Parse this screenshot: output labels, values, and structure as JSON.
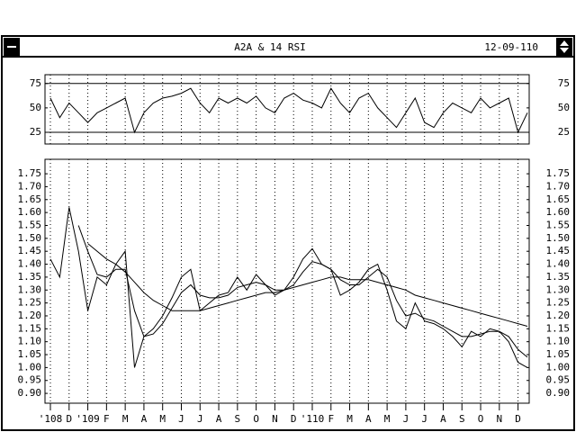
{
  "window": {
    "title": "A2A & 14 RSI",
    "date": "12-09-110"
  },
  "chart_data": [
    {
      "type": "line",
      "ylim": [
        13,
        84
      ],
      "yticks": [
        25,
        50,
        75
      ],
      "ref_lines": [
        25,
        75
      ],
      "series": [
        {
          "color": "#000000",
          "values": [
            60,
            40,
            55,
            45,
            35,
            45,
            50,
            55,
            60,
            25,
            45,
            55,
            60,
            62,
            65,
            70,
            55,
            45,
            60,
            55,
            60,
            55,
            62,
            50,
            45,
            60,
            65,
            58,
            55,
            50,
            70,
            55,
            45,
            60,
            65,
            50,
            40,
            30,
            45,
            60,
            35,
            30,
            45,
            55,
            50,
            45,
            60,
            50,
            55,
            60,
            25,
            45
          ]
        }
      ]
    },
    {
      "type": "line",
      "ylim": [
        0.862,
        1.806
      ],
      "yticks": [
        1.75,
        {
          "value": 1.7,
          "label": "1.70"
        },
        1.65,
        {
          "value": 1.6,
          "label": "1.60"
        },
        1.55,
        {
          "value": 1.5,
          "label": "1.50"
        },
        1.45,
        {
          "value": 1.4,
          "label": "1.40"
        },
        1.35,
        {
          "value": 1.3,
          "label": "1.30"
        },
        1.25,
        {
          "value": 1.2,
          "label": "1.20"
        },
        1.15,
        {
          "value": 1.1,
          "label": "1.10"
        },
        1.05,
        {
          "value": 1,
          "label": "1.00"
        },
        0.95,
        {
          "value": 0.9,
          "label": "0.90"
        }
      ],
      "categories": [
        "'108",
        null,
        "D",
        null,
        "'109",
        null,
        "F",
        null,
        "M",
        null,
        "A",
        null,
        "M",
        null,
        "J",
        null,
        "J",
        null,
        "A",
        null,
        "S",
        null,
        "O",
        null,
        "N",
        null,
        "D",
        null,
        "'110",
        null,
        "F",
        null,
        "M",
        null,
        "A",
        null,
        "M",
        null,
        "J",
        null,
        "J",
        null,
        "A",
        null,
        "S",
        null,
        "O",
        null,
        "N",
        null,
        "D",
        null
      ],
      "series": [
        {
          "color": "#000000",
          "values": [
            1.42,
            1.35,
            1.62,
            1.45,
            1.22,
            1.35,
            1.32,
            1.4,
            1.45,
            1.0,
            1.12,
            1.15,
            1.2,
            1.27,
            1.35,
            1.38,
            1.22,
            1.25,
            1.28,
            1.29,
            1.35,
            1.3,
            1.36,
            1.32,
            1.28,
            1.3,
            1.35,
            1.42,
            1.46,
            1.4,
            1.38,
            1.28,
            1.3,
            1.33,
            1.38,
            1.4,
            1.3,
            1.18,
            1.15,
            1.25,
            1.18,
            1.17,
            1.15,
            1.12,
            1.08,
            1.14,
            1.12,
            1.15,
            1.14,
            1.1,
            1.02,
            1.0
          ]
        },
        {
          "color": "#000000",
          "values": [
            null,
            null,
            null,
            1.55,
            1.45,
            1.36,
            1.35,
            1.38,
            1.38,
            1.22,
            1.12,
            1.13,
            1.17,
            1.23,
            1.29,
            1.32,
            1.28,
            1.27,
            1.27,
            1.28,
            1.31,
            1.32,
            1.33,
            1.32,
            1.3,
            1.3,
            1.32,
            1.37,
            1.41,
            1.4,
            1.38,
            1.34,
            1.32,
            1.32,
            1.35,
            1.38,
            1.35,
            1.26,
            1.2,
            1.21,
            1.19,
            1.18,
            1.16,
            1.14,
            1.12,
            1.12,
            1.13,
            1.14,
            1.14,
            1.12,
            1.07,
            1.04
          ]
        },
        {
          "color": "#000000",
          "values": [
            null,
            null,
            null,
            null,
            1.48,
            1.45,
            1.42,
            1.4,
            1.37,
            1.33,
            1.29,
            1.26,
            1.24,
            1.22,
            1.22,
            1.22,
            1.22,
            1.23,
            1.24,
            1.25,
            1.26,
            1.27,
            1.28,
            1.29,
            1.29,
            1.3,
            1.31,
            1.32,
            1.33,
            1.34,
            1.35,
            1.35,
            1.34,
            1.34,
            1.34,
            1.33,
            1.32,
            1.31,
            1.3,
            1.28,
            1.27,
            1.26,
            1.25,
            1.24,
            1.23,
            1.22,
            1.21,
            1.2,
            1.19,
            1.18,
            1.17,
            1.16
          ]
        }
      ]
    }
  ]
}
